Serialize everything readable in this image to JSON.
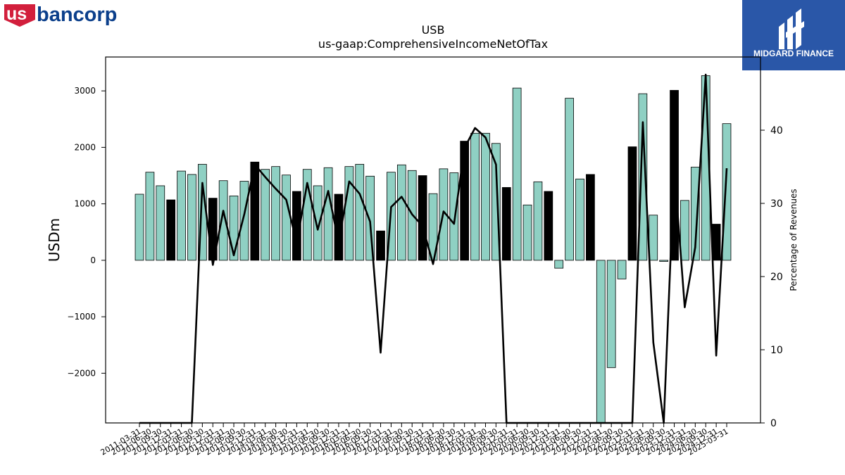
{
  "branding": {
    "left_logo_text_us": "us",
    "left_logo_text_bancorp": "bancorp",
    "left_logo_color_red": "#d21f3c",
    "left_logo_color_blue": "#0b3f8b",
    "right_logo_text": "MIDGARD FINANCE",
    "right_logo_bg": "#2a57a8"
  },
  "chart_data": {
    "type": "bar",
    "title": "USB",
    "subtitle": "us-gaap:ComprehensiveIncomeNetOfTax",
    "ylabel": "USDm",
    "y2label": "Percentage of Revenues",
    "ylim": [
      -2880,
      3600
    ],
    "y2lim": [
      0,
      50
    ],
    "yticks": [
      -2000,
      -1000,
      0,
      1000,
      2000,
      3000
    ],
    "y2ticks": [
      0,
      10,
      20,
      30,
      40
    ],
    "colors": {
      "teal": "#8fd0c3",
      "black": "#000000",
      "line": "#000000"
    },
    "categories": [
      "2011-03-31",
      "2011-06-30",
      "2011-09-30",
      "2011-12-31",
      "2012-03-31",
      "2012-06-30",
      "2012-09-30",
      "2012-12-31",
      "2013-03-31",
      "2013-06-30",
      "2013-09-30",
      "2013-12-31",
      "2014-03-31",
      "2014-06-30",
      "2014-09-30",
      "2014-12-31",
      "2015-03-31",
      "2015-06-30",
      "2015-09-30",
      "2015-12-31",
      "2016-03-31",
      "2016-06-30",
      "2016-09-30",
      "2016-12-31",
      "2017-03-31",
      "2017-06-30",
      "2017-09-30",
      "2017-12-31",
      "2018-03-31",
      "2018-06-30",
      "2018-09-30",
      "2018-12-31",
      "2019-03-31",
      "2019-06-30",
      "2019-09-30",
      "2019-12-31",
      "2020-03-31",
      "2020-06-30",
      "2020-09-30",
      "2020-12-31",
      "2021-03-31",
      "2021-06-30",
      "2021-09-30",
      "2021-12-31",
      "2022-03-31",
      "2022-06-30",
      "2022-09-30",
      "2022-12-31",
      "2023-03-31",
      "2023-06-30",
      "2023-09-30",
      "2023-12-31",
      "2024-03-31",
      "2024-06-30",
      "2024-09-30",
      "2024-12-31",
      "2025-03-31"
    ],
    "xtick_labels": [
      "2011-03-31",
      "2011-06-30",
      "2011-09-30",
      "2011-12-31",
      "2012-03-31",
      "2012-06-30",
      "2012-09-30",
      "2012-12-31",
      "2013-03-31",
      "2013-06-30",
      "2013-09-30",
      "2013-12-31",
      "2014-03-31",
      "2014-06-30",
      "2014-09-30",
      "2014-12-31",
      "2015-03-31",
      "2015-06-30",
      "2015-09-30",
      "2015-12-31",
      "2016-03-31",
      "2016-06-30",
      "2016-09-30",
      "2016-12-31",
      "2017-03-31",
      "2017-06-30",
      "2017-09-30",
      "2017-12-31",
      "2018-03-31",
      "2018-06-30",
      "2018-09-30",
      "2018-12-31",
      "2019-03-31",
      "2019-06-30",
      "2019-09-30",
      "2019-12-31",
      "2020-03-31",
      "2020-06-30",
      "2020-09-30",
      "2020-12-31",
      "2021-03-31",
      "2021-06-30",
      "2021-09-30",
      "2021-12-31",
      "2022-03-31",
      "2022-06-30",
      "2022-09-30",
      "2022-12-31",
      "2023-03-31",
      "2023-06-30",
      "2023-09-30",
      "2023-12-31",
      "2024-03-31",
      "2024-06-30",
      "2024-09-30",
      "2024-12-31",
      "2025-03-31"
    ],
    "values": [
      1170,
      1560,
      1320,
      1070,
      1580,
      1520,
      1700,
      1100,
      1410,
      1140,
      1400,
      1740,
      1610,
      1660,
      1510,
      1220,
      1610,
      1320,
      1640,
      1170,
      1660,
      1700,
      1490,
      520,
      1560,
      1690,
      1590,
      1500,
      1180,
      1620,
      1550,
      2110,
      2250,
      2250,
      2070,
      1290,
      3050,
      980,
      1390,
      1220,
      -140,
      2870,
      1440,
      1520,
      -2880,
      -1900,
      -330,
      2010,
      2950,
      800,
      -20,
      3010,
      1060,
      1650,
      3270,
      640,
      2420
    ],
    "bar_color_keys": [
      "teal",
      "teal",
      "teal",
      "black",
      "teal",
      "teal",
      "teal",
      "black",
      "teal",
      "teal",
      "teal",
      "black",
      "teal",
      "teal",
      "teal",
      "black",
      "teal",
      "teal",
      "teal",
      "black",
      "teal",
      "teal",
      "teal",
      "black",
      "teal",
      "teal",
      "teal",
      "black",
      "teal",
      "teal",
      "teal",
      "black",
      "teal",
      "teal",
      "teal",
      "black",
      "teal",
      "teal",
      "teal",
      "black",
      "teal",
      "teal",
      "teal",
      "black",
      "teal",
      "teal",
      "teal",
      "black",
      "teal",
      "teal",
      "teal",
      "black",
      "teal",
      "teal",
      "teal",
      "black",
      "teal"
    ],
    "percent_of_revenues": [
      0,
      0,
      0,
      0,
      0,
      0,
      32.8,
      21.6,
      29.0,
      22.9,
      28.5,
      35.3,
      33.6,
      32.0,
      30.5,
      24.6,
      32.8,
      26.4,
      31.7,
      24.6,
      33.0,
      31.3,
      27.5,
      9.6,
      29.5,
      30.9,
      28.5,
      26.9,
      21.7,
      28.9,
      27.2,
      37.6,
      40.3,
      39.0,
      35.3,
      0,
      0,
      0,
      0,
      0,
      0,
      0,
      0,
      0,
      0,
      0,
      0,
      0,
      41.1,
      11.0,
      0,
      34.8,
      15.8,
      24.0,
      47.6,
      9.2,
      34.8
    ]
  }
}
